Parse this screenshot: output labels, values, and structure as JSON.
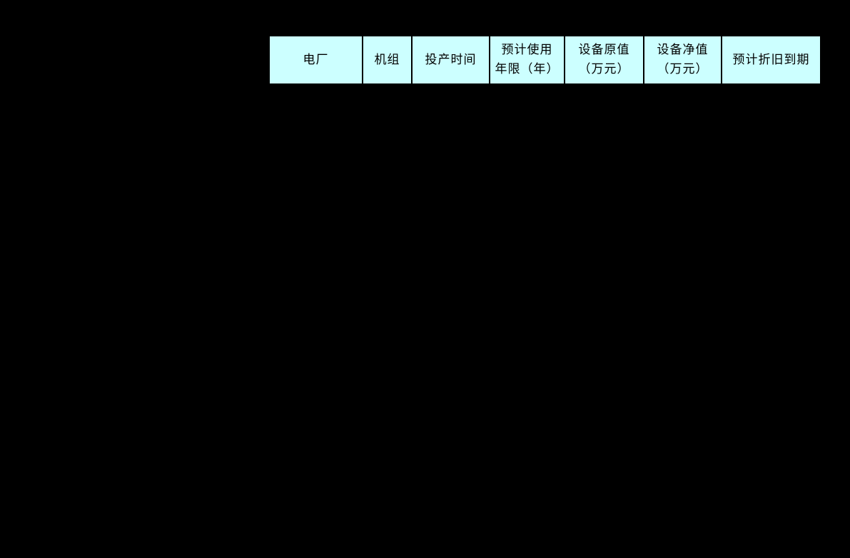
{
  "page": {
    "background_color": "#000000"
  },
  "table": {
    "header_background_color": "#CCFFFF",
    "header_text_color": "#000000",
    "columns": [
      {
        "id": "plant",
        "label": "电厂",
        "lines": [
          "电厂"
        ]
      },
      {
        "id": "unit",
        "label": "机组",
        "lines": [
          "机组"
        ]
      },
      {
        "id": "commissioning-time",
        "label": "投产时间",
        "lines": [
          "投产时间"
        ]
      },
      {
        "id": "expected-service-life-years",
        "label": "预计使用年限（年）",
        "lines": [
          "预计使用",
          "年限（年）"
        ]
      },
      {
        "id": "equipment-original-value",
        "label": "设备原值（万元）",
        "lines": [
          "设备原值",
          "（万元）"
        ]
      },
      {
        "id": "equipment-net-value",
        "label": "设备净值（万元）",
        "lines": [
          "设备净值",
          "（万元）"
        ]
      },
      {
        "id": "expected-depreciation-maturity",
        "label": "预计折旧到期",
        "lines": [
          "预计折旧到期"
        ]
      }
    ]
  }
}
